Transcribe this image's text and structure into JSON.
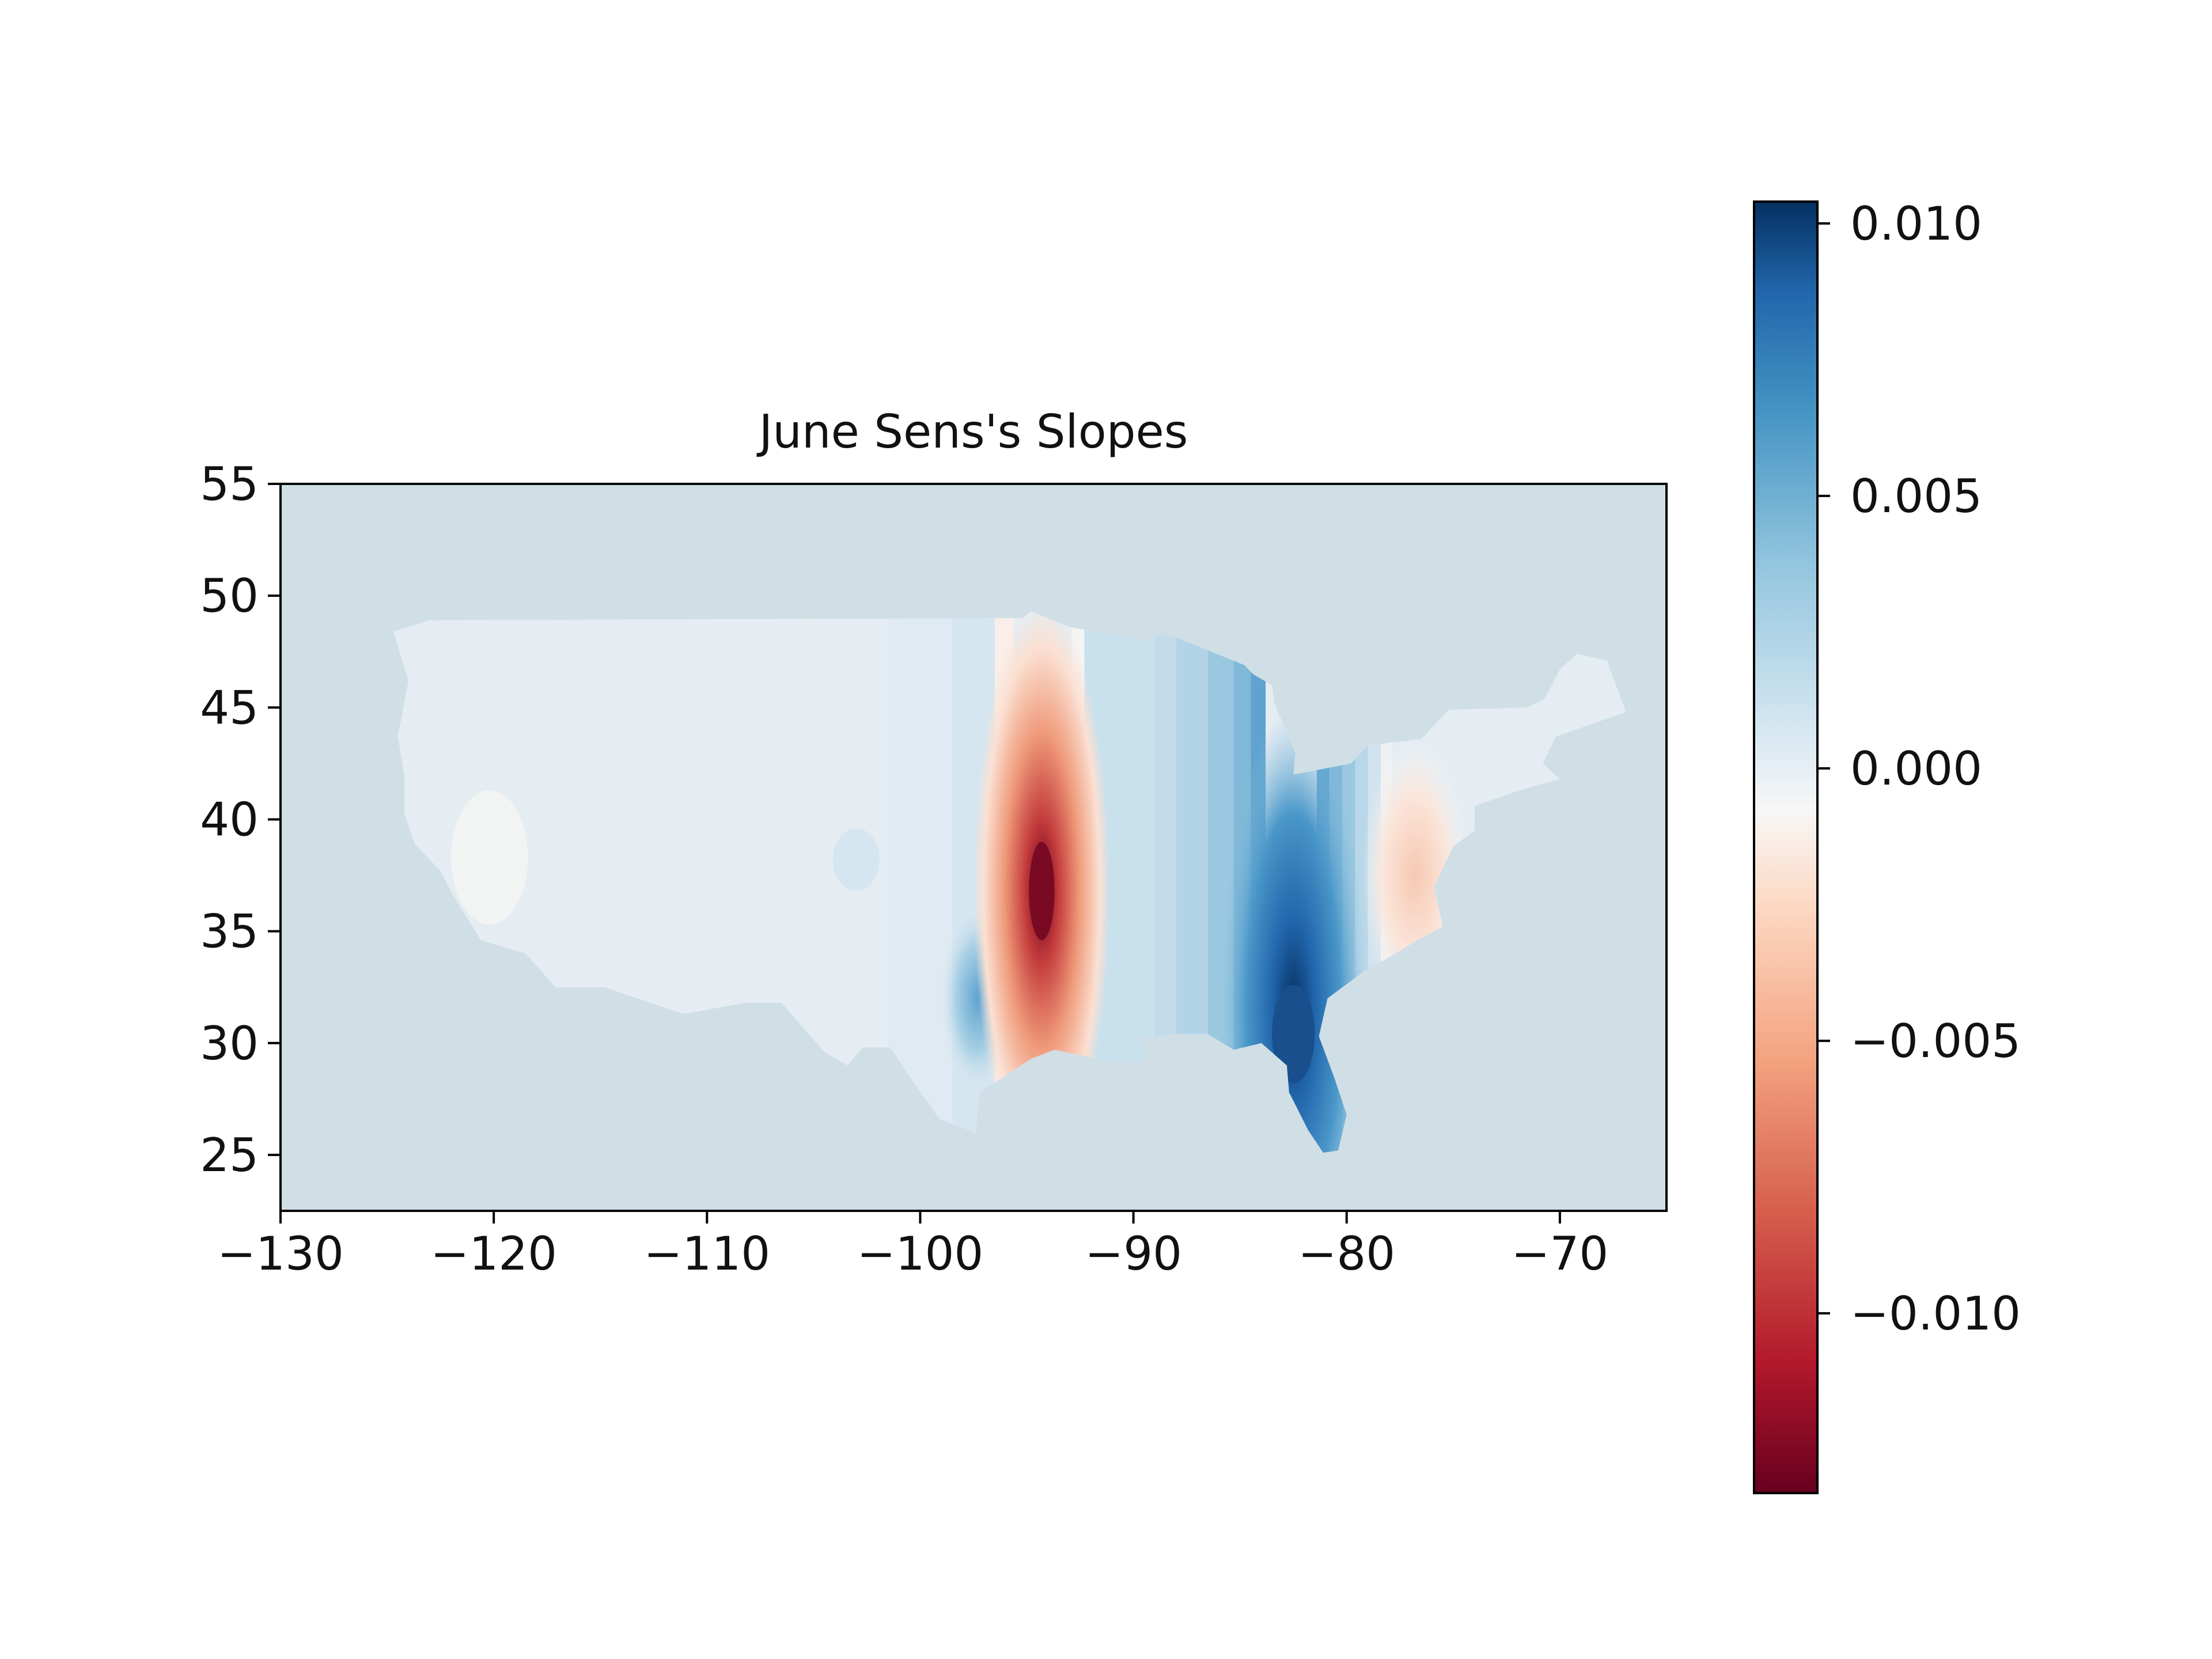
{
  "chart_data": {
    "type": "contour-map",
    "title": "June Sens's Slopes",
    "xlabel": "",
    "ylabel": "",
    "xlim": [
      -130,
      -65
    ],
    "ylim": [
      22.5,
      55
    ],
    "x_ticks": [
      -130,
      -120,
      -110,
      -100,
      -90,
      -80,
      -70
    ],
    "y_ticks": [
      25,
      30,
      35,
      40,
      45,
      50,
      55
    ],
    "x_tick_labels": [
      "−130",
      "−120",
      "−110",
      "−100",
      "−90",
      "−80",
      "−70"
    ],
    "y_tick_labels": [
      "25",
      "30",
      "35",
      "40",
      "45",
      "50",
      "55"
    ],
    "colorbar": {
      "colormap": "RdBu",
      "range": [
        -0.0133,
        0.0104
      ],
      "ticks": [
        -0.01,
        -0.005,
        0.0,
        0.005,
        0.01
      ],
      "tick_labels": [
        "−0.010",
        "−0.005",
        "0.000",
        "0.005",
        "0.010"
      ]
    },
    "background_color": "#d0dfe6",
    "features": [
      {
        "name": "negative-peak-central",
        "lon": -94.3,
        "lat": 36.8,
        "value": -0.0133
      },
      {
        "name": "positive-peak-southeast",
        "lon": -82.5,
        "lat": 30.5,
        "value": 0.0104
      },
      {
        "name": "positive-band-southeast",
        "lon": -82.5,
        "lat": 35.5,
        "value": 0.008
      },
      {
        "name": "positive-lobe-texas",
        "lon": -97.3,
        "lat": 32.0,
        "value": 0.004
      },
      {
        "name": "negative-lobe-midatlantic",
        "lon": -76.8,
        "lat": 37.5,
        "value": -0.002
      },
      {
        "name": "weak-lobe-california",
        "lon": -120.2,
        "lat": 38.3,
        "value": -0.0003
      },
      {
        "name": "weak-lobe-colorado",
        "lon": -103.0,
        "lat": 38.2,
        "value": 0.001
      }
    ]
  }
}
